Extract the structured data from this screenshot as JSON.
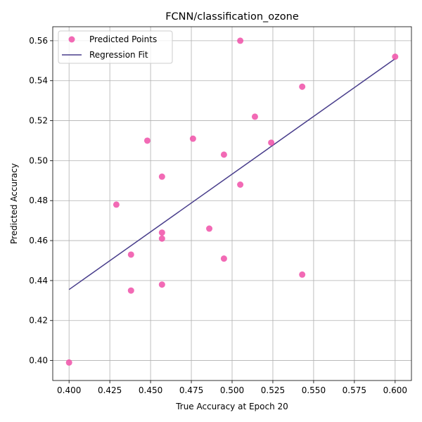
{
  "chart_data": {
    "type": "scatter",
    "title": "FCNN/classification_ozone",
    "xlabel": "True Accuracy at Epoch 20",
    "ylabel": "Predicted Accuracy",
    "xlim": [
      0.39,
      0.61
    ],
    "ylim": [
      0.39,
      0.567
    ],
    "grid": true,
    "legend_position": "top-left",
    "x_ticks": [
      "0.400",
      "0.425",
      "0.450",
      "0.475",
      "0.500",
      "0.525",
      "0.550",
      "0.575",
      "0.600"
    ],
    "y_ticks": [
      "0.40",
      "0.42",
      "0.44",
      "0.46",
      "0.48",
      "0.50",
      "0.52",
      "0.54",
      "0.56"
    ],
    "series": [
      {
        "name": "Predicted Points",
        "kind": "scatter",
        "color": "#f050a8",
        "points": [
          [
            0.4,
            0.399
          ],
          [
            0.429,
            0.478
          ],
          [
            0.438,
            0.435
          ],
          [
            0.438,
            0.453
          ],
          [
            0.448,
            0.51
          ],
          [
            0.457,
            0.492
          ],
          [
            0.457,
            0.464
          ],
          [
            0.457,
            0.461
          ],
          [
            0.457,
            0.438
          ],
          [
            0.476,
            0.511
          ],
          [
            0.486,
            0.466
          ],
          [
            0.495,
            0.503
          ],
          [
            0.495,
            0.451
          ],
          [
            0.505,
            0.56
          ],
          [
            0.505,
            0.488
          ],
          [
            0.514,
            0.522
          ],
          [
            0.524,
            0.509
          ],
          [
            0.543,
            0.537
          ],
          [
            0.543,
            0.443
          ],
          [
            0.6,
            0.552
          ]
        ]
      },
      {
        "name": "Regression Fit",
        "kind": "line",
        "color": "#483d8b",
        "points": [
          [
            0.4,
            0.4355
          ],
          [
            0.6,
            0.551
          ]
        ]
      }
    ]
  }
}
